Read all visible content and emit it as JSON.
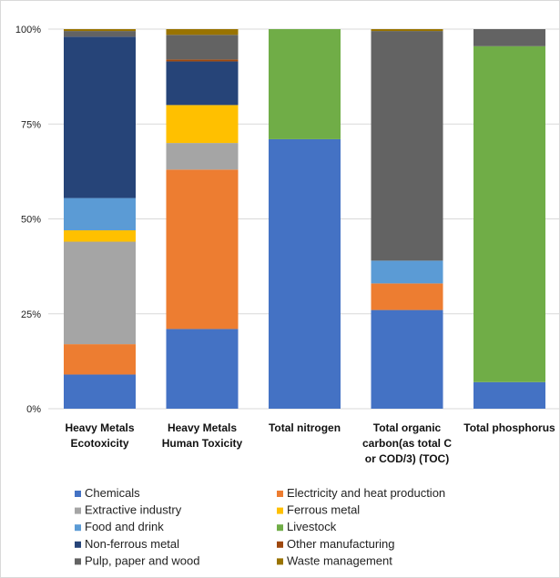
{
  "chart_data": {
    "type": "bar",
    "stacked": "percent",
    "title": "",
    "xlabel": "",
    "ylabel": "",
    "ylim": [
      0,
      100
    ],
    "y_ticks": [
      "0%",
      "25%",
      "50%",
      "75%",
      "100%"
    ],
    "grid": true,
    "legend_position": "bottom",
    "categories": [
      [
        "Heavy Metals",
        "Ecotoxicity"
      ],
      [
        "Heavy Metals",
        "Human Toxicity"
      ],
      [
        "Total nitrogen"
      ],
      [
        "Total organic",
        "carbon(as total C",
        "or COD/3) (TOC)"
      ],
      [
        "Total phosphorus"
      ]
    ],
    "series": [
      {
        "name": "Chemicals",
        "color": "#4472C4",
        "values": [
          9,
          21,
          71,
          26,
          7
        ]
      },
      {
        "name": "Electricity and heat production",
        "color": "#ED7D31",
        "values": [
          8,
          42,
          0,
          7,
          0
        ]
      },
      {
        "name": "Extractive industry",
        "color": "#A5A5A5",
        "values": [
          27,
          7,
          0,
          0,
          0
        ]
      },
      {
        "name": "Ferrous metal",
        "color": "#FFC000",
        "values": [
          3,
          10,
          0,
          0,
          0
        ]
      },
      {
        "name": "Food and drink",
        "color": "#5B9BD5",
        "values": [
          8.5,
          0,
          0,
          6,
          0
        ]
      },
      {
        "name": "Livestock",
        "color": "#70AD47",
        "values": [
          0,
          0,
          29,
          0,
          88.5
        ]
      },
      {
        "name": "Non-ferrous metal",
        "color": "#264478",
        "values": [
          42.5,
          11.5,
          0,
          0,
          0
        ]
      },
      {
        "name": "Other manufacturing",
        "color": "#9E480E",
        "values": [
          0,
          0.5,
          0,
          0,
          0
        ]
      },
      {
        "name": "Pulp, paper and wood",
        "color": "#636363",
        "values": [
          1.5,
          6.5,
          0,
          60.5,
          4.5
        ]
      },
      {
        "name": "Waste management",
        "color": "#997300",
        "values": [
          0.5,
          1.5,
          0,
          0.5,
          0
        ]
      }
    ]
  }
}
